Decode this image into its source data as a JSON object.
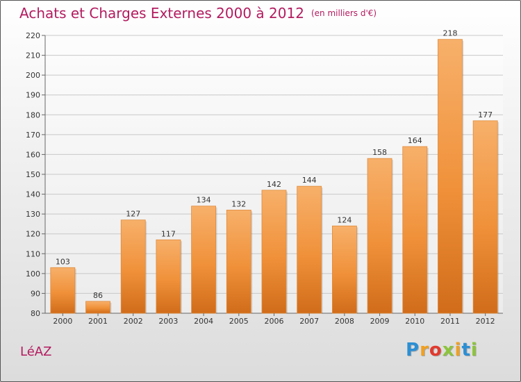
{
  "title": "Achats et Charges Externes 2000 à 2012",
  "subtitle": "(en milliers d'€)",
  "place": "LéAZ",
  "logo": {
    "letters": [
      "P",
      "r",
      "o",
      "x",
      "i",
      "t",
      "i"
    ],
    "colors": [
      "#2b8fd4",
      "#f0a020",
      "#e23a2e",
      "#8cc43c",
      "#f0a020",
      "#2b8fd4",
      "#8cc43c"
    ]
  },
  "colors": {
    "bar": "#f0913a",
    "bar_light": "#f7b06a",
    "bar_dark": "#d06c1a",
    "title": "#b31b5f"
  },
  "chart_data": {
    "type": "bar",
    "categories": [
      "2000",
      "2001",
      "2002",
      "2003",
      "2004",
      "2005",
      "2006",
      "2007",
      "2008",
      "2009",
      "2010",
      "2011",
      "2012"
    ],
    "values": [
      103,
      86,
      127,
      117,
      134,
      132,
      142,
      144,
      124,
      158,
      164,
      218,
      177
    ],
    "ylim": [
      80,
      220
    ],
    "yticks": [
      80,
      90,
      100,
      110,
      120,
      130,
      140,
      150,
      160,
      170,
      180,
      190,
      200,
      210,
      220
    ],
    "grid": true
  }
}
